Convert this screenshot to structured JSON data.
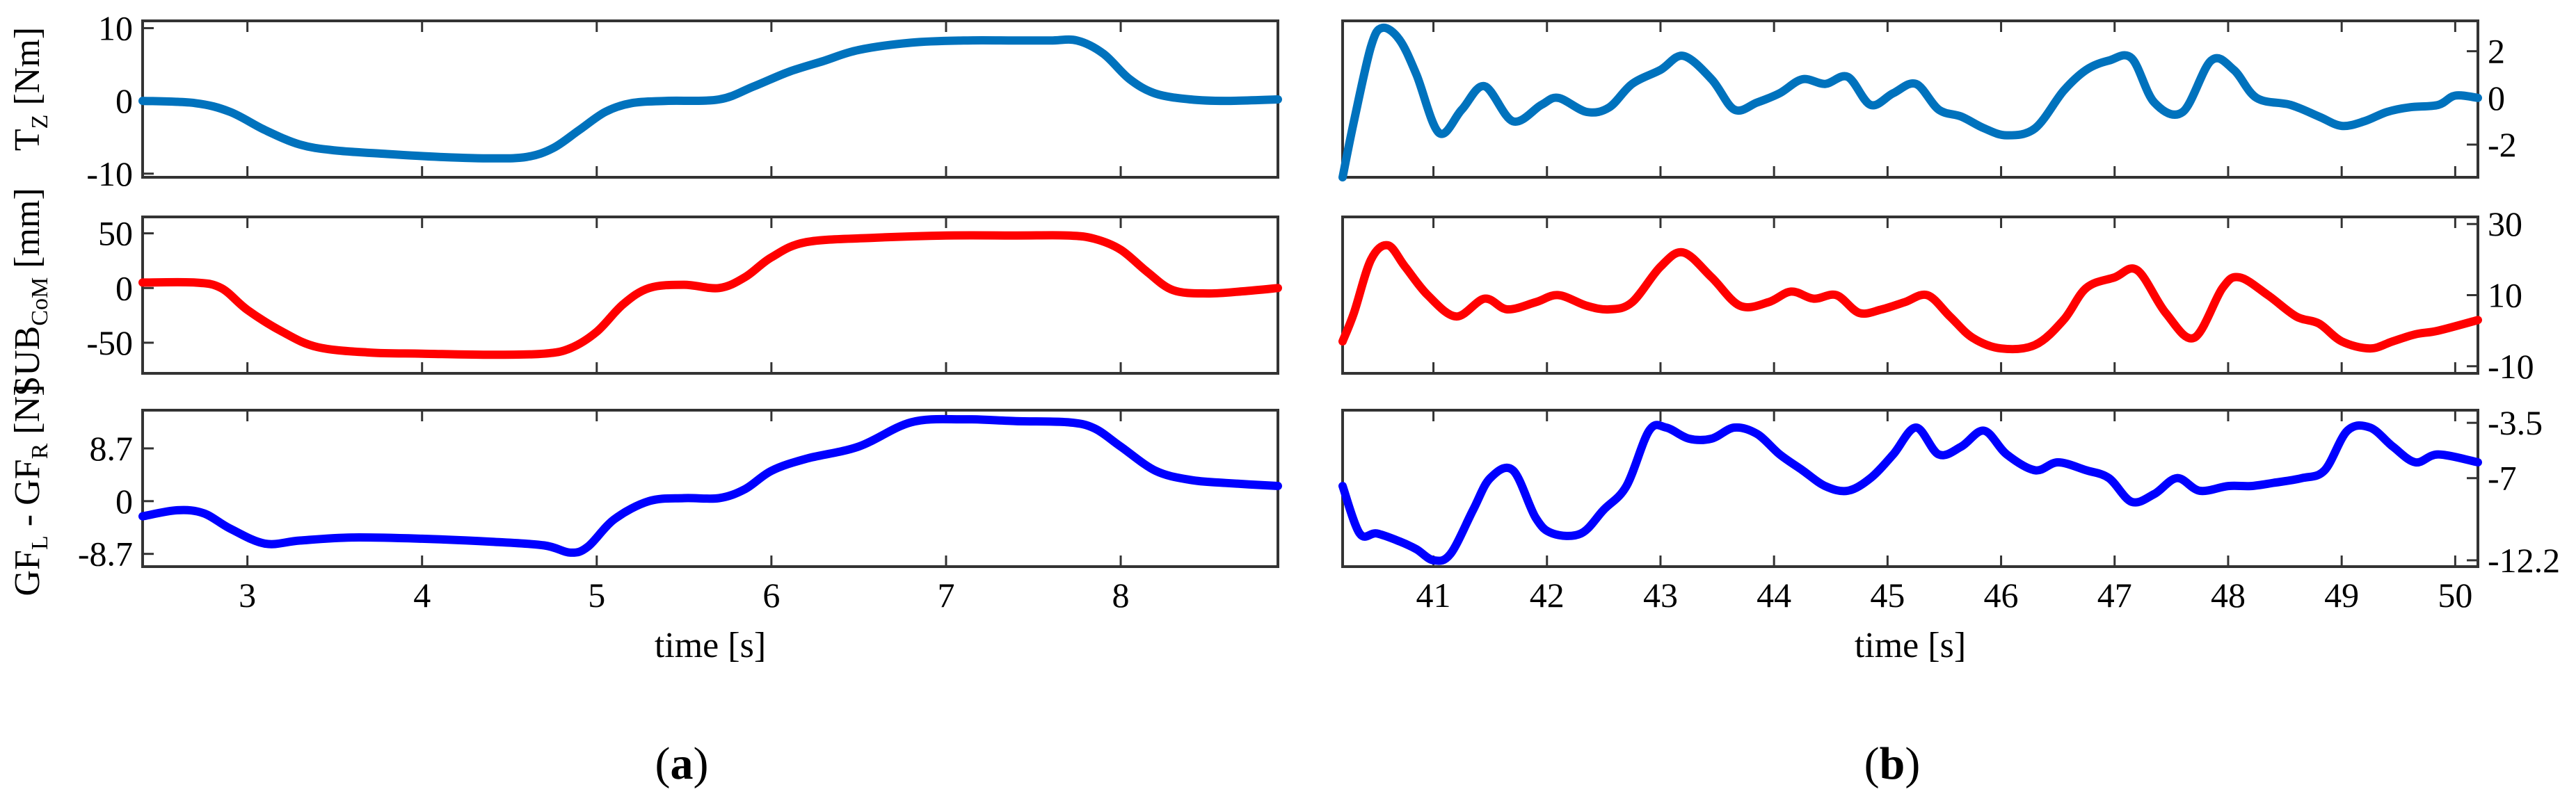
{
  "colors": {
    "tz": "#0072bd",
    "sub": "#ff0000",
    "gf": "#0000ff"
  },
  "panels": {
    "a": "a",
    "b": "b",
    "open": "(",
    "close": ")"
  },
  "ylabels": {
    "tz": {
      "main": "T",
      "sub": "Z",
      "unit": " [Nm]"
    },
    "sub": {
      "main": "SUB",
      "sub": "CoM",
      "unit": " [mm]"
    },
    "gf": {
      "p1": "GF",
      "s1": "L",
      "p2": " - GF",
      "s2": "R",
      "unit": " [N]"
    }
  },
  "chart_data": [
    {
      "type": "line",
      "panel": "a",
      "row": "tz",
      "xlim": [
        2.4,
        8.9
      ],
      "ylim": [
        -10.5,
        11
      ],
      "xticks": [
        3,
        4,
        5,
        6,
        7,
        8
      ],
      "yticks": [
        -10,
        0,
        10
      ],
      "ytick_labels": [
        "-10",
        "0",
        "10"
      ],
      "xlabel": "",
      "yaxis": "left",
      "x": [
        2.4,
        2.7,
        2.9,
        3.1,
        3.3,
        3.5,
        3.8,
        4.1,
        4.4,
        4.6,
        4.75,
        4.9,
        5.05,
        5.2,
        5.4,
        5.7,
        5.9,
        6.1,
        6.3,
        6.5,
        6.8,
        7.1,
        7.4,
        7.6,
        7.75,
        7.9,
        8.05,
        8.2,
        8.4,
        8.6,
        8.9
      ],
      "y": [
        0,
        -0.3,
        -1.5,
        -4,
        -6,
        -6.8,
        -7.3,
        -7.7,
        -7.9,
        -7.7,
        -6.5,
        -4,
        -1.5,
        -0.3,
        0,
        0.2,
        2,
        4,
        5.5,
        7,
        8,
        8.3,
        8.3,
        8.3,
        8.3,
        6.5,
        3,
        1,
        0.2,
        0,
        0.2
      ]
    },
    {
      "type": "line",
      "panel": "a",
      "row": "sub",
      "xlim": [
        2.4,
        8.9
      ],
      "ylim": [
        -78,
        65
      ],
      "xticks": [
        3,
        4,
        5,
        6,
        7,
        8
      ],
      "yticks": [
        -50,
        0,
        50
      ],
      "ytick_labels": [
        "-50",
        "0",
        "50"
      ],
      "xlabel": "",
      "yaxis": "left",
      "x": [
        2.4,
        2.7,
        2.85,
        3.0,
        3.2,
        3.4,
        3.7,
        4.0,
        4.4,
        4.7,
        4.85,
        5.0,
        5.15,
        5.3,
        5.5,
        5.7,
        5.85,
        6.0,
        6.2,
        6.6,
        7.0,
        7.4,
        7.7,
        7.85,
        8.0,
        8.15,
        8.3,
        8.5,
        8.7,
        8.9
      ],
      "y": [
        5,
        5,
        0,
        -20,
        -40,
        -54,
        -59,
        -60,
        -61,
        -60,
        -55,
        -40,
        -15,
        0,
        3,
        0,
        10,
        28,
        42,
        46,
        48,
        48,
        48,
        45,
        35,
        15,
        -2,
        -5,
        -3,
        0
      ]
    },
    {
      "type": "line",
      "panel": "a",
      "row": "gf",
      "xlim": [
        2.4,
        8.9
      ],
      "ylim": [
        -10.8,
        15
      ],
      "xticks": [
        3,
        4,
        5,
        6,
        7,
        8
      ],
      "xtick_labels": [
        "3",
        "4",
        "5",
        "6",
        "7",
        "8"
      ],
      "yticks": [
        -8.7,
        0,
        8.7
      ],
      "ytick_labels": [
        "-8.7",
        "0",
        "8.7"
      ],
      "xlabel": "time [s]",
      "yaxis": "left",
      "x": [
        2.4,
        2.6,
        2.75,
        2.9,
        3.1,
        3.3,
        3.6,
        4.0,
        4.4,
        4.7,
        4.85,
        4.95,
        5.1,
        5.3,
        5.5,
        5.7,
        5.85,
        6.0,
        6.2,
        6.5,
        6.8,
        7.1,
        7.4,
        7.7,
        7.85,
        8.0,
        8.2,
        8.4,
        8.6,
        8.9
      ],
      "y": [
        -2.5,
        -1.5,
        -2,
        -4.5,
        -7,
        -6.5,
        -6,
        -6.2,
        -6.7,
        -7.3,
        -8.5,
        -7.5,
        -3,
        0,
        0.5,
        0.5,
        2,
        5,
        7,
        9,
        13,
        13.5,
        13.2,
        13,
        12,
        9,
        5,
        3.5,
        3,
        2.5
      ]
    },
    {
      "type": "line",
      "panel": "b",
      "row": "tz",
      "xlim": [
        40.2,
        50.2
      ],
      "ylim": [
        -3.4,
        3.3
      ],
      "xticks": [
        41,
        42,
        43,
        44,
        45,
        46,
        47,
        48,
        49,
        50
      ],
      "yticks": [
        -2,
        0,
        2
      ],
      "ytick_labels": [
        "-2",
        "0",
        "2"
      ],
      "xlabel": "",
      "yaxis": "right",
      "x": [
        40.2,
        40.3,
        40.45,
        40.55,
        40.7,
        40.85,
        41.05,
        41.25,
        41.45,
        41.7,
        41.95,
        42.1,
        42.35,
        42.55,
        42.75,
        43.0,
        43.2,
        43.45,
        43.65,
        43.85,
        44.05,
        44.25,
        44.45,
        44.65,
        44.85,
        45.05,
        45.25,
        45.45,
        45.65,
        45.85,
        46.05,
        46.3,
        46.55,
        46.75,
        46.95,
        47.15,
        47.35,
        47.6,
        47.85,
        48.05,
        48.25,
        48.55,
        48.8,
        49.0,
        49.2,
        49.4,
        49.6,
        49.85,
        50.0,
        50.2
      ],
      "y": [
        -3.4,
        -1,
        2.2,
        3,
        2.5,
        1,
        -1.5,
        -0.5,
        0.5,
        -1,
        -0.3,
        0,
        -0.6,
        -0.4,
        0.6,
        1.2,
        1.8,
        0.8,
        -0.5,
        -0.2,
        0.2,
        0.8,
        0.6,
        0.9,
        -0.3,
        0.2,
        0.6,
        -0.5,
        -0.8,
        -1.3,
        -1.6,
        -1.3,
        0.3,
        1.2,
        1.6,
        1.7,
        -0.2,
        -0.6,
        1.6,
        1.2,
        0,
        -0.3,
        -0.8,
        -1.2,
        -1.0,
        -0.6,
        -0.4,
        -0.3,
        0.1,
        0
      ]
    },
    {
      "type": "line",
      "panel": "b",
      "row": "sub",
      "xlim": [
        40.2,
        50.2
      ],
      "ylim": [
        -12,
        32
      ],
      "xticks": [
        41,
        42,
        43,
        44,
        45,
        46,
        47,
        48,
        49,
        50
      ],
      "yticks": [
        -10,
        10,
        30
      ],
      "ytick_labels": [
        "-10",
        "10",
        "30"
      ],
      "xlabel": "",
      "yaxis": "right",
      "x": [
        40.2,
        40.3,
        40.45,
        40.6,
        40.75,
        40.95,
        41.2,
        41.45,
        41.65,
        41.9,
        42.1,
        42.35,
        42.55,
        42.75,
        43.0,
        43.2,
        43.45,
        43.7,
        43.95,
        44.15,
        44.35,
        44.55,
        44.75,
        44.95,
        45.15,
        45.35,
        45.55,
        45.75,
        46.0,
        46.3,
        46.55,
        46.75,
        47.0,
        47.2,
        47.45,
        47.7,
        47.95,
        48.1,
        48.35,
        48.6,
        48.8,
        49.0,
        49.25,
        49.45,
        49.65,
        49.85,
        50.2
      ],
      "y": [
        -3,
        5,
        20,
        24,
        18,
        10,
        4,
        9,
        6,
        8,
        10,
        7,
        6,
        8,
        18,
        22,
        15,
        7,
        8,
        11,
        9,
        10,
        5,
        6,
        8,
        10,
        4,
        -2,
        -5,
        -4,
        3,
        12,
        15,
        17,
        5,
        -2,
        12,
        15,
        10,
        4,
        2,
        -3,
        -5,
        -3,
        -1,
        0,
        3
      ]
    },
    {
      "type": "line",
      "panel": "b",
      "row": "gf",
      "xlim": [
        40.2,
        50.2
      ],
      "ylim": [
        -12.6,
        -2.7
      ],
      "xticks": [
        41,
        42,
        43,
        44,
        45,
        46,
        47,
        48,
        49,
        50
      ],
      "xtick_labels": [
        "41",
        "42",
        "43",
        "44",
        "45",
        "46",
        "47",
        "48",
        "49",
        "50"
      ],
      "yticks": [
        -12.2,
        -7,
        -3.5
      ],
      "ytick_labels": [
        "-12.2",
        "-7",
        "-3.5"
      ],
      "xlabel": "time [s]",
      "yaxis": "right",
      "x": [
        40.2,
        40.35,
        40.5,
        40.7,
        40.85,
        41.0,
        41.15,
        41.35,
        41.5,
        41.7,
        41.9,
        42.05,
        42.3,
        42.5,
        42.7,
        42.9,
        43.05,
        43.25,
        43.45,
        43.65,
        43.85,
        44.05,
        44.25,
        44.45,
        44.65,
        44.85,
        45.05,
        45.25,
        45.45,
        45.65,
        45.85,
        46.05,
        46.3,
        46.5,
        46.75,
        46.95,
        47.15,
        47.35,
        47.55,
        47.75,
        48.0,
        48.2,
        48.4,
        48.65,
        48.85,
        49.05,
        49.25,
        49.45,
        49.65,
        49.85,
        50.2
      ],
      "y": [
        -7.5,
        -10.5,
        -10.5,
        -11,
        -11.5,
        -12.2,
        -11.8,
        -9,
        -7,
        -6.5,
        -9.5,
        -10.5,
        -10.5,
        -9,
        -7.5,
        -4,
        -3.8,
        -4.5,
        -4.5,
        -3.8,
        -4.2,
        -5.5,
        -6.5,
        -7.5,
        -7.8,
        -7,
        -5.5,
        -3.8,
        -5.5,
        -5,
        -4,
        -5.5,
        -6.5,
        -6,
        -6.5,
        -7,
        -8.5,
        -8,
        -7,
        -7.8,
        -7.5,
        -7.5,
        -7.3,
        -7,
        -6.5,
        -4,
        -3.8,
        -5,
        -6,
        -5.5,
        -6
      ]
    }
  ]
}
